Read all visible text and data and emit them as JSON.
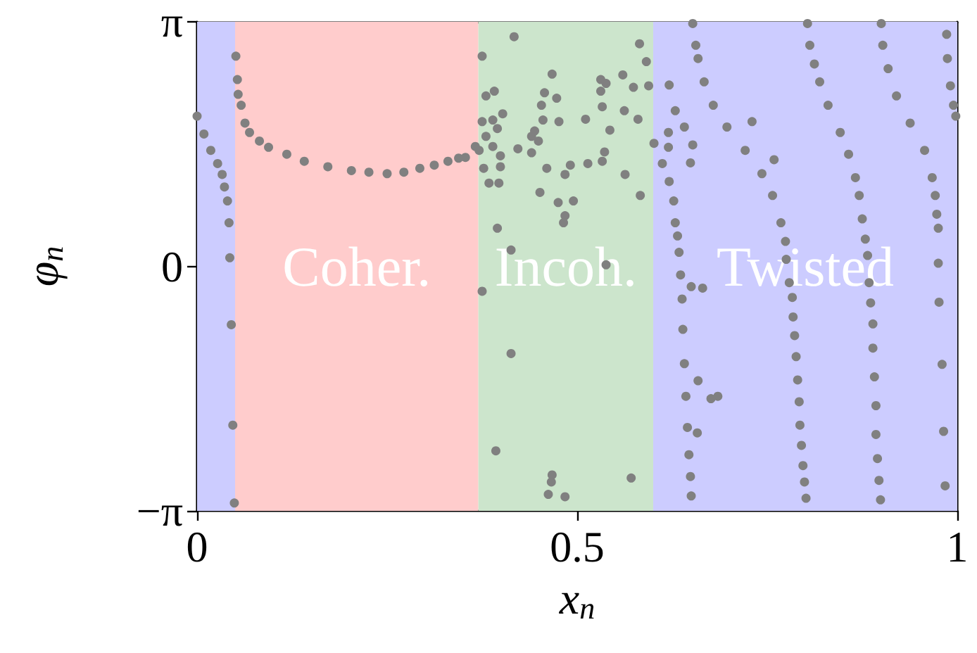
{
  "chart_data": {
    "type": "scatter",
    "xlabel": "x$_{n}$",
    "ylabel": "φ$_{n}$",
    "xlim": [
      0,
      1
    ],
    "xticks": [
      0,
      0.5,
      1
    ],
    "ylim": [
      -3.1416,
      3.1416
    ],
    "yticks": [
      {
        "value": -3.1416,
        "label": "−π"
      },
      {
        "value": 0,
        "label": "0"
      },
      {
        "value": 3.1416,
        "label": "π"
      }
    ],
    "grid": false,
    "marker": "circle",
    "bands": [
      {
        "axis": "x",
        "from": 0,
        "to": 0.05,
        "label": null,
        "color": "#ccccff"
      },
      {
        "axis": "x",
        "from": 0.05,
        "to": 0.37,
        "label": "Coher.",
        "color": "#ffcccc"
      },
      {
        "axis": "x",
        "from": 0.37,
        "to": 0.6,
        "label": "Incoh.",
        "color": "#cce5cc"
      },
      {
        "axis": "x",
        "from": 0.6,
        "to": 1,
        "label": "Twisted",
        "color": "#ccccff"
      }
    ],
    "series": [
      {
        "color": "#808080",
        "x": [
          0,
          0.009,
          0.018,
          0.027,
          0.033,
          0.036,
          0.04,
          0.042,
          0.043,
          0.045,
          0.047,
          0.049,
          0.051,
          0.053,
          0.054,
          0.058,
          0.063,
          0.069,
          0.082,
          0.094,
          0.118,
          0.141,
          0.172,
          0.203,
          0.226,
          0.25,
          0.272,
          0.293,
          0.312,
          0.33,
          0.344,
          0.353,
          0.366,
          0.417,
          0.375,
          0.467,
          0.582,
          0.591,
          0.594,
          0.56,
          0.531,
          0.538,
          0.574,
          0.531,
          0.457,
          0.473,
          0.38,
          0.391,
          0.402,
          0.453,
          0.455,
          0.476,
          0.511,
          0.533,
          0.562,
          0.58,
          0.543,
          0.375,
          0.389,
          0.395,
          0.444,
          0.449,
          0.44,
          0.422,
          0.44,
          0.389,
          0.38,
          0.371,
          0.399,
          0.377,
          0.399,
          0.384,
          0.397,
          0.46,
          0.491,
          0.484,
          0.514,
          0.533,
          0.536,
          0.563,
          0.451,
          0.475,
          0.495,
          0.484,
          0.482,
          0.583,
          0.395,
          0.413,
          0.538,
          0.375,
          0.413,
          0.393,
          0.467,
          0.466,
          0.462,
          0.484,
          0.571,
          0.601,
          0.612,
          0.621,
          0.627,
          0.629,
          0.632,
          0.634,
          0.636,
          0.638,
          0.639,
          0.641,
          0.643,
          0.645,
          0.647,
          0.649,
          0.65,
          0.621,
          0.629,
          0.641,
          0.62,
          0.62,
          0.652,
          0.649,
          0.73,
          0.759,
          0.65,
          0.665,
          0.659,
          0.676,
          0.685,
          0.658,
          0.652,
          0.656,
          0.659,
          0.667,
          0.679,
          0.697,
          0.721,
          0.743,
          0.757,
          0.768,
          0.774,
          0.775,
          0.779,
          0.783,
          0.784,
          0.786,
          0.788,
          0.79,
          0.792,
          0.793,
          0.795,
          0.797,
          0.799,
          0.801,
          0.803,
          0.806,
          0.812,
          0.819,
          0.83,
          0.846,
          0.857,
          0.866,
          0.871,
          0.875,
          0.879,
          0.882,
          0.884,
          0.886,
          0.889,
          0.889,
          0.891,
          0.893,
          0.893,
          0.895,
          0.897,
          0.899,
          0.9,
          0.902,
          0.909,
          0.92,
          0.938,
          0.957,
          0.967,
          0.971,
          0.973,
          0.975,
          0.975,
          0.976,
          0.98,
          0.982,
          0.984,
          0.986,
          0.987,
          0.991,
          0.995,
          0.998
        ],
        "values": [
          1.93,
          1.7,
          1.49,
          1.32,
          1.18,
          1.02,
          0.84,
          0.56,
          0.11,
          -0.75,
          -2.04,
          -3.04,
          2.7,
          2.4,
          2.21,
          2.07,
          1.84,
          1.72,
          1.61,
          1.53,
          1.44,
          1.35,
          1.28,
          1.23,
          1.21,
          1.19,
          1.21,
          1.26,
          1.3,
          1.35,
          1.39,
          1.4,
          1.54,
          2.95,
          2.7,
          2.47,
          2.86,
          2.63,
          2.32,
          2.46,
          2.4,
          2.35,
          2.3,
          2.25,
          2.23,
          2.16,
          2.19,
          2.25,
          1.96,
          2.07,
          1.88,
          1.86,
          1.89,
          2.05,
          2.0,
          1.89,
          1.75,
          1.86,
          1.88,
          1.77,
          1.74,
          1.61,
          1.67,
          1.51,
          1.46,
          1.54,
          1.67,
          1.49,
          1.42,
          1.26,
          1.28,
          1.07,
          1.07,
          1.26,
          1.3,
          1.18,
          1.32,
          1.35,
          1.47,
          1.18,
          0.95,
          0.82,
          0.84,
          0.65,
          0.56,
          0.91,
          0.49,
          0.21,
          0.02,
          -0.32,
          -1.12,
          -2.37,
          -2.68,
          -2.77,
          -2.93,
          -2.96,
          -2.72,
          1.58,
          1.32,
          1.09,
          0.84,
          0.56,
          0.39,
          0.18,
          -0.11,
          -0.42,
          -0.81,
          -1.25,
          -1.67,
          -2.07,
          -2.42,
          -2.7,
          -2.95,
          2.33,
          2.0,
          1.79,
          1.72,
          1.53,
          1.56,
          1.33,
          1.86,
          1.37,
          -0.26,
          -0.28,
          -1.47,
          -1.7,
          -1.67,
          -2.14,
          3.12,
          2.84,
          2.67,
          2.37,
          2.07,
          1.79,
          1.49,
          1.19,
          0.91,
          0.56,
          0.32,
          0.09,
          -0.21,
          -0.4,
          -0.65,
          -0.89,
          -1.16,
          -1.46,
          -1.74,
          -2.04,
          -2.3,
          -2.56,
          -2.77,
          -2.98,
          3.12,
          2.84,
          2.6,
          2.37,
          2.07,
          1.72,
          1.44,
          1.14,
          0.91,
          0.61,
          0.35,
          0.14,
          -0.21,
          -0.47,
          -0.74,
          -1.05,
          -1.42,
          -1.79,
          -2.16,
          -2.47,
          -2.75,
          -3.0,
          3.12,
          2.84,
          2.54,
          2.19,
          1.84,
          1.49,
          1.14,
          0.91,
          0.67,
          0.49,
          0.04,
          -0.46,
          -1.26,
          -2.12,
          -2.82,
          2.98,
          2.67,
          2.32,
          2.07,
          1.93
        ]
      }
    ]
  }
}
